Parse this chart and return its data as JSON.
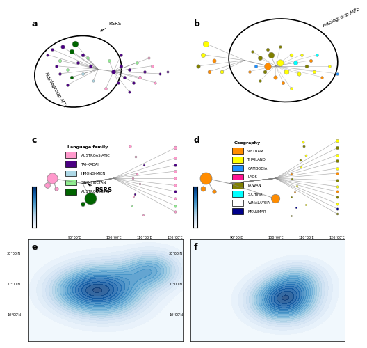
{
  "panel_labels": [
    "a",
    "b",
    "c",
    "d",
    "e",
    "f"
  ],
  "lang_family_colors": {
    "AUSTROASIATIC": "#FF99CC",
    "TAI-KADAI": "#4B0082",
    "HMONG-MIEN": "#ADD8E6",
    "SINO-TIBETAN": "#90EE90",
    "AUSTRONESIAN": "#006400"
  },
  "geo_colors": {
    "VIETNAM": "#FF8C00",
    "THAILAND": "#FFFF00",
    "CAMBODIA": "#1E90FF",
    "LAOS": "#FF1493",
    "TAIWAN": "#808000",
    "S.CHINA": "#00FFFF",
    "W.MALAYSIA": "#FFFFFF",
    "MYANMAR": "#00008B"
  },
  "haplogroup_a_label": "Haplogroup M7c",
  "haplogroup_b_label": "Haplogroup M7b",
  "rsrs_label": "RSRS",
  "bg_color": "#FFFFFF"
}
